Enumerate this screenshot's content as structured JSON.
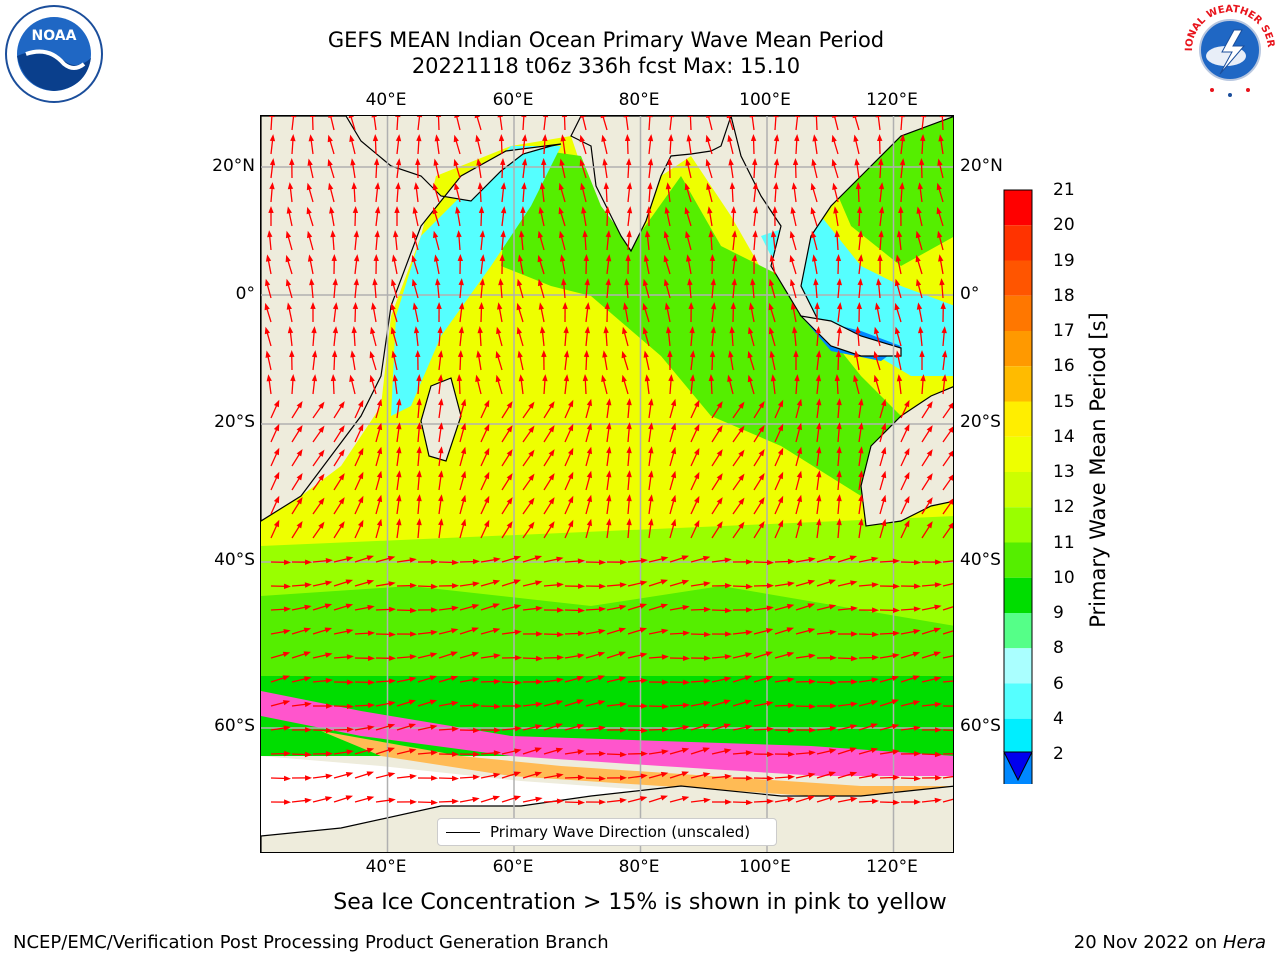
{
  "header": {
    "title_line1": "GEFS MEAN Indian Ocean Primary Wave Mean Period",
    "title_line2": "20221118 t06z 336h fcst   Max: 15.10"
  },
  "map": {
    "lon_ticks": [
      "40°E",
      "60°E",
      "80°E",
      "100°E",
      "120°E"
    ],
    "lon_values": [
      40,
      60,
      80,
      100,
      120
    ],
    "lat_ticks": [
      "20°N",
      "0°",
      "20°S",
      "40°S",
      "60°S"
    ],
    "lat_values": [
      20,
      0,
      -20,
      -40,
      -60
    ],
    "lon_range": [
      20,
      130
    ],
    "lat_range": [
      -80,
      28
    ],
    "grid": true,
    "legend_label": "Primary Wave Direction (unscaled)",
    "arrow_color": "#ff0000",
    "land_color": "#eeecdc"
  },
  "colorbar": {
    "title": "Primary Wave Mean Period [s]",
    "tick_labels": [
      "21",
      "20",
      "19",
      "18",
      "17",
      "16",
      "15",
      "14",
      "13",
      "12",
      "11",
      "10",
      "9",
      "8",
      "6",
      "4",
      "2"
    ],
    "colors_top_to_bottom": [
      "#ff0000",
      "#ff3300",
      "#ff5500",
      "#ff7700",
      "#ff9900",
      "#ffbb00",
      "#ffee00",
      "#eeff00",
      "#ccff00",
      "#99ff00",
      "#55ee00",
      "#00dd00",
      "#55ff88",
      "#aaffff",
      "#55ffff",
      "#00eeff",
      "#0088ff"
    ],
    "extend_color": "#0000ee"
  },
  "footer": {
    "caption": "Sea Ice Concentration > 15% is shown in pink to yellow",
    "left": "NCEP/EMC/Verification Post Processing Product Generation Branch",
    "right_prefix": "20 Nov 2022 on ",
    "right_host": "Hera"
  },
  "logos": {
    "noaa_text": "NOAA",
    "nws_text": "NATIONAL WEATHER SERVICE"
  }
}
